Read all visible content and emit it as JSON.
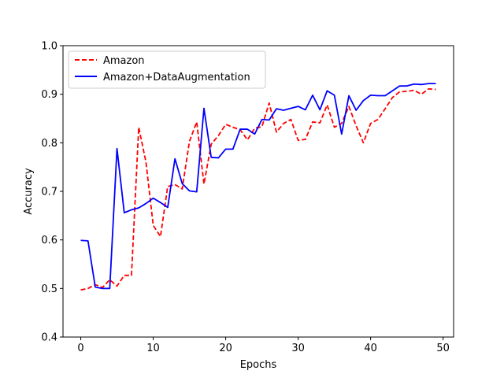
{
  "chart_data": {
    "type": "line",
    "title": "",
    "xlabel": "Epochs",
    "ylabel": "Accuracy",
    "xlim": [
      -2.45,
      51.45
    ],
    "ylim": [
      0.4,
      1.0
    ],
    "xticks": [
      0,
      10,
      20,
      30,
      40,
      50
    ],
    "xtick_labels": [
      "0",
      "10",
      "20",
      "30",
      "40",
      "50"
    ],
    "yticks": [
      0.4,
      0.5,
      0.6,
      0.7,
      0.8,
      0.9,
      1.0
    ],
    "ytick_labels": [
      "0.4",
      "0.5",
      "0.6",
      "0.7",
      "0.8",
      "0.9",
      "1.0"
    ],
    "grid": false,
    "legend_position": "upper-left",
    "x": [
      0,
      1,
      2,
      3,
      4,
      5,
      6,
      7,
      8,
      9,
      10,
      11,
      12,
      13,
      14,
      15,
      16,
      17,
      18,
      19,
      20,
      21,
      22,
      23,
      24,
      25,
      26,
      27,
      28,
      29,
      30,
      31,
      32,
      33,
      34,
      35,
      36,
      37,
      38,
      39,
      40,
      41,
      42,
      43,
      44,
      45,
      46,
      47,
      48,
      49
    ],
    "series": [
      {
        "name": "Amazon",
        "color": "#ff0000",
        "dash": "dashed",
        "values": [
          0.497,
          0.5,
          0.508,
          0.502,
          0.518,
          0.505,
          0.527,
          0.527,
          0.832,
          0.76,
          0.63,
          0.607,
          0.71,
          0.714,
          0.705,
          0.803,
          0.843,
          0.715,
          0.797,
          0.815,
          0.838,
          0.832,
          0.827,
          0.806,
          0.83,
          0.833,
          0.882,
          0.822,
          0.84,
          0.848,
          0.805,
          0.807,
          0.843,
          0.841,
          0.878,
          0.832,
          0.84,
          0.875,
          0.835,
          0.8,
          0.84,
          0.848,
          0.87,
          0.893,
          0.905,
          0.906,
          0.908,
          0.9,
          0.911,
          0.91
        ]
      },
      {
        "name": "Amazon+DataAugmentation",
        "color": "#0000ff",
        "dash": "solid",
        "values": [
          0.599,
          0.598,
          0.503,
          0.5,
          0.5,
          0.788,
          0.656,
          0.662,
          0.666,
          0.675,
          0.686,
          0.677,
          0.667,
          0.767,
          0.716,
          0.701,
          0.699,
          0.871,
          0.77,
          0.769,
          0.787,
          0.787,
          0.828,
          0.828,
          0.818,
          0.848,
          0.847,
          0.87,
          0.867,
          0.871,
          0.875,
          0.868,
          0.898,
          0.868,
          0.907,
          0.898,
          0.818,
          0.897,
          0.867,
          0.887,
          0.898,
          0.897,
          0.897,
          0.907,
          0.917,
          0.917,
          0.921,
          0.92,
          0.922,
          0.922
        ]
      }
    ]
  }
}
